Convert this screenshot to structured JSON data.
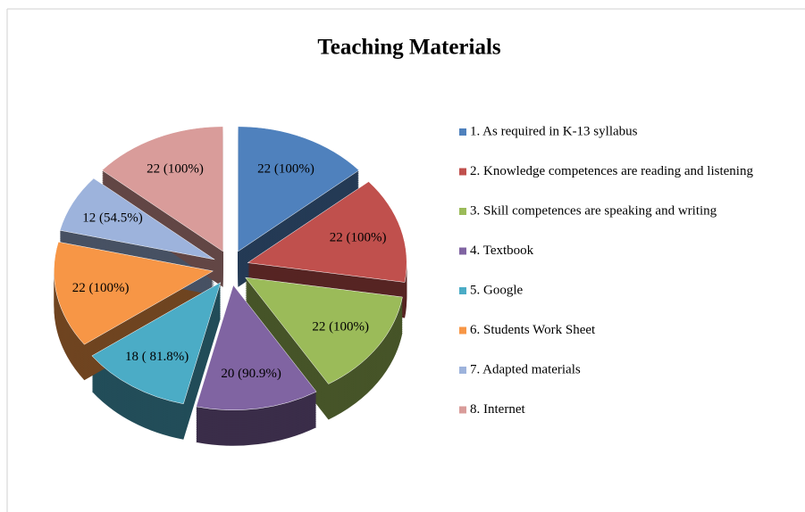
{
  "chart_data": {
    "type": "pie",
    "title": "Teaching Materials",
    "categories": [
      "1. As required in K-13 syllabus",
      "2. Knowledge competences are reading and listening",
      "3. Skill competences are speaking and writing",
      "4. Textbook",
      "5. Google",
      "6. Students Work Sheet",
      "7. Adapted materials",
      "8. Internet"
    ],
    "values": [
      22,
      22,
      22,
      20,
      18,
      22,
      12,
      22
    ],
    "value_labels": [
      "22 (100%)",
      "22 (100%)",
      "22 (100%)",
      "20 (90.9%)",
      "18 ( 81.8%)",
      "22 (100%)",
      "12 (54.5%)",
      "22 (100%)"
    ],
    "colors": [
      "#4f81bd",
      "#c0504d",
      "#9bbb59",
      "#8064a2",
      "#4bacc6",
      "#f79646",
      "#9db3dc",
      "#d99c9a"
    ]
  }
}
